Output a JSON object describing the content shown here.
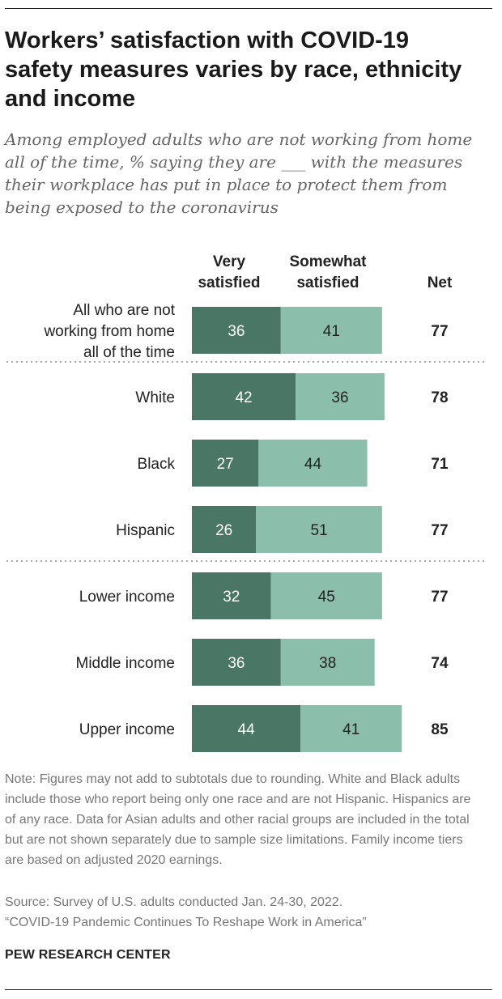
{
  "title": "Workers’ satisfaction with COVID-19 safety measures varies by race, ethnicity and income",
  "subtitle": "Among employed adults who are not working from home all of the time, % saying they are ___ with the measures their workplace has put in place to protect them from being exposed to the coronavirus",
  "note": "Note: Figures may not add to subtotals due to rounding. White and Black adults include those who report being only one race and are not Hispanic. Hispanics are of any race. Data for Asian adults and other racial groups are included in the total but are not shown separately due to sample size limitations. Family income tiers are based on adjusted 2020 earnings.",
  "source_line1": "Source: Survey of U.S. adults conducted Jan. 24-30, 2022.",
  "source_line2": "“COVID-19 Pandemic Continues To Reshape Work in America”",
  "credit": "PEW RESEARCH CENTER",
  "colors": {
    "very": "#4a7665",
    "somewhat": "#8bbfac",
    "divider": "#aaaaaa"
  },
  "chart_data": {
    "type": "bar",
    "orientation": "horizontal",
    "stacked": true,
    "column_headers": {
      "very": [
        "Very",
        "satisfied"
      ],
      "somewhat": [
        "Somewhat",
        "satisfied"
      ],
      "net": "Net"
    },
    "categories": [
      [
        "All who are not",
        "working from home",
        "all of the time"
      ],
      [
        "White"
      ],
      [
        "Black"
      ],
      [
        "Hispanic"
      ],
      [
        "Lower income"
      ],
      [
        "Middle income"
      ],
      [
        "Upper income"
      ]
    ],
    "series": [
      {
        "name": "Very satisfied",
        "values": [
          36,
          42,
          27,
          26,
          32,
          36,
          44
        ]
      },
      {
        "name": "Somewhat satisfied",
        "values": [
          41,
          36,
          44,
          51,
          45,
          38,
          41
        ]
      }
    ],
    "net": [
      77,
      78,
      71,
      77,
      77,
      74,
      85
    ],
    "group_breaks_after": [
      0,
      3
    ]
  }
}
